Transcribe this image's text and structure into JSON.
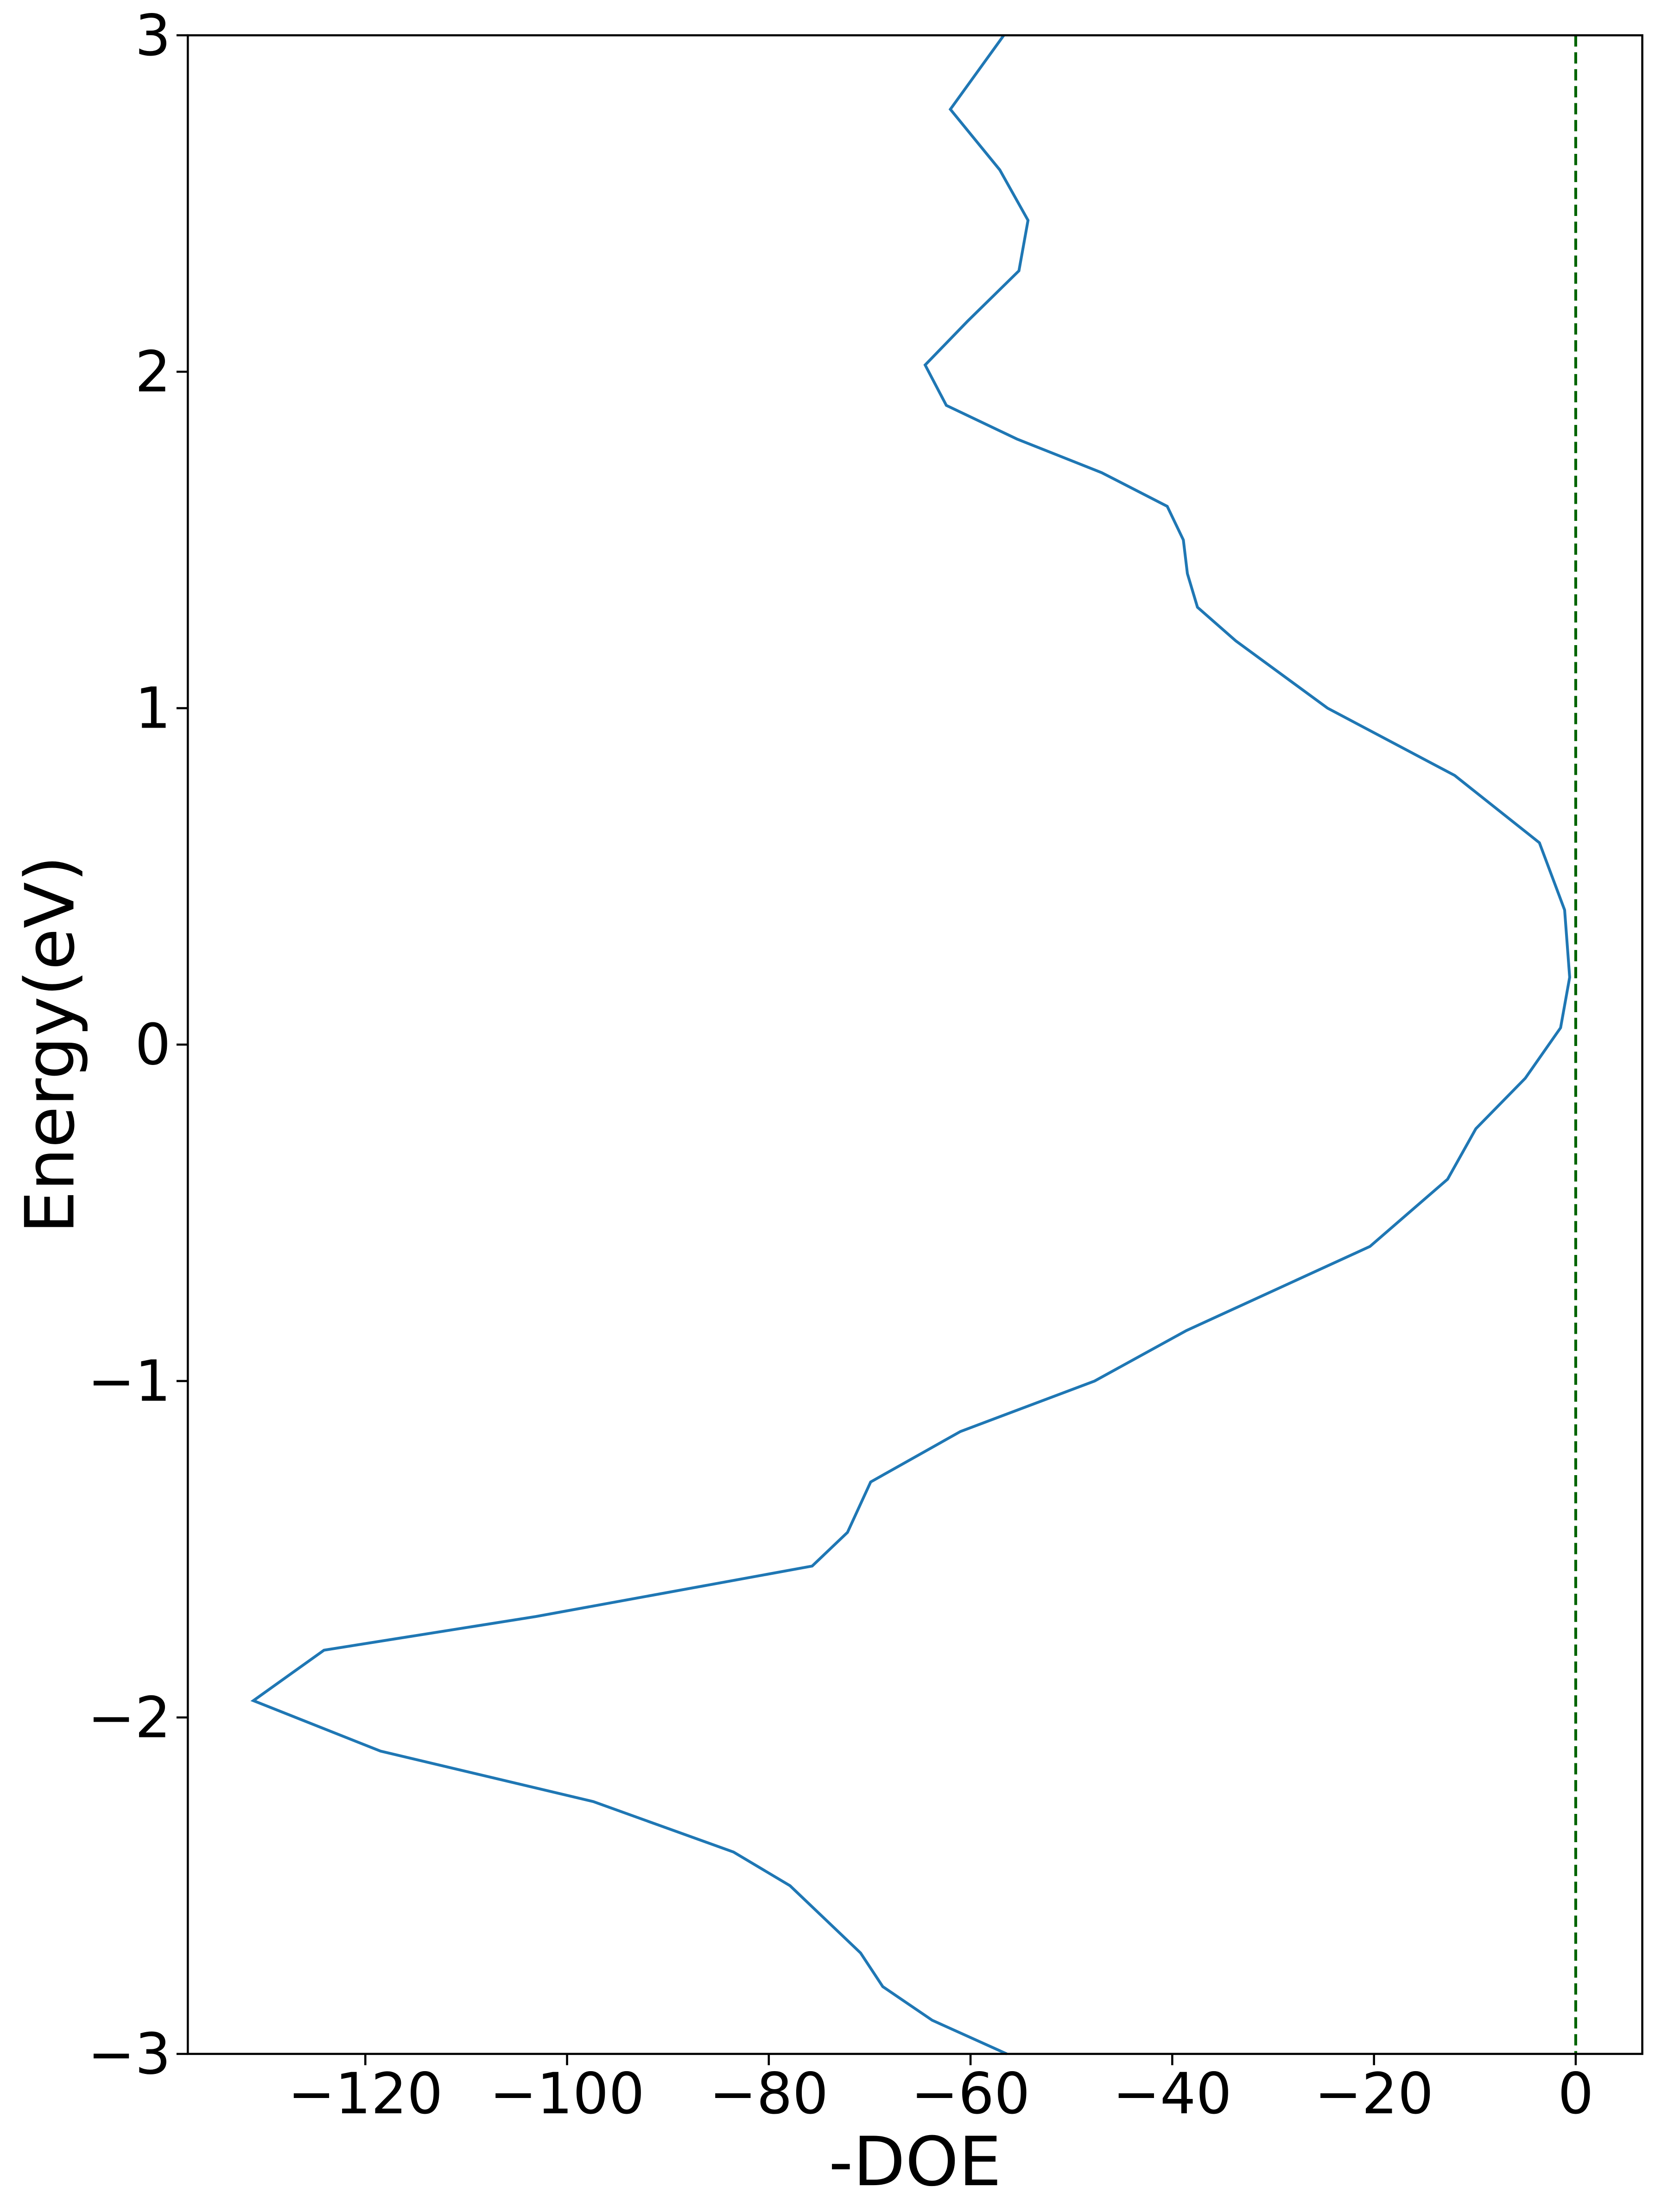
{
  "chart_data": {
    "type": "line",
    "x_label": "-DOE",
    "y_label": "Energy(eV)",
    "xlim": [
      -137.6,
      6.6
    ],
    "ylim": [
      -3,
      3
    ],
    "xticks": [
      {
        "value": -120,
        "label": "−120"
      },
      {
        "value": -100,
        "label": "−100"
      },
      {
        "value": -80,
        "label": "−80"
      },
      {
        "value": -60,
        "label": "−60"
      },
      {
        "value": -40,
        "label": "−40"
      },
      {
        "value": -20,
        "label": "−20"
      },
      0
    ],
    "yticks": [
      {
        "value": -3,
        "label": "−3"
      },
      {
        "value": -2,
        "label": "−2"
      },
      {
        "value": -1,
        "label": "−1"
      },
      0,
      1,
      2,
      3
    ],
    "series": [
      {
        "color": "#1f77b4",
        "x": [
          -56.7,
          -62.0,
          -57.1,
          -54.3,
          -55.2,
          -60.3,
          -64.5,
          -62.4,
          -55.4,
          -47.0,
          -40.5,
          -38.9,
          -38.5,
          -37.5,
          -33.7,
          -24.6,
          -12.0,
          -3.6,
          -1.1,
          -0.6,
          -1.5,
          -5.0,
          -9.9,
          -12.7,
          -20.4,
          -38.6,
          -47.7,
          -61.0,
          -69.9,
          -72.2,
          -75.7,
          -103.1,
          -124.1,
          -131.1,
          -118.5,
          -97.4,
          -83.5,
          -77.9,
          -74.4,
          -70.9,
          -68.7,
          -63.8,
          -56.4
        ],
        "y": [
          3,
          2.78,
          2.6,
          2.45,
          2.3,
          2.15,
          2.02,
          1.9,
          1.8,
          1.7,
          1.6,
          1.5,
          1.4,
          1.3,
          1.2,
          1.0,
          0.8,
          0.6,
          0.4,
          0.2,
          0.05,
          -0.1,
          -0.25,
          -0.4,
          -0.6,
          -0.85,
          -1.0,
          -1.15,
          -1.3,
          -1.45,
          -1.55,
          -1.7,
          -1.8,
          -1.95,
          -2.1,
          -2.25,
          -2.4,
          -2.5,
          -2.6,
          -2.7,
          -2.8,
          -2.9,
          -3.0
        ]
      }
    ],
    "vline": {
      "x": 0,
      "color": "#006400",
      "dashed": true
    }
  }
}
